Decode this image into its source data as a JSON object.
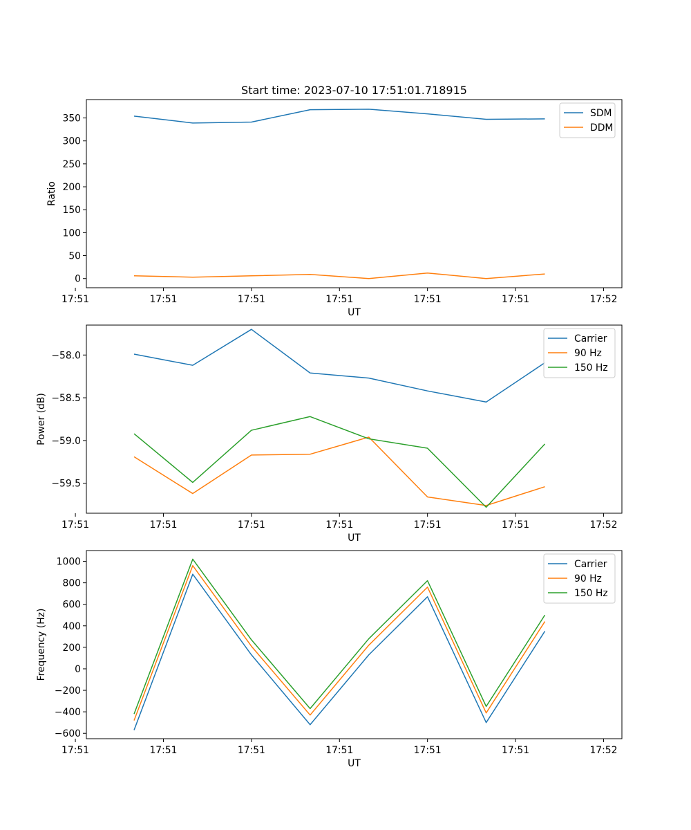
{
  "figure_title": "Start time: 2023-07-10 17:51:01.718915",
  "chart_data": [
    {
      "type": "line",
      "title": "Start time: 2023-07-10 17:51:01.718915",
      "xlabel": "UT",
      "ylabel": "Ratio",
      "x": [
        1,
        2,
        3,
        4,
        5,
        6,
        7,
        8
      ],
      "xlim": [
        0.1875,
        9.3125
      ],
      "xtick_positions": [
        0,
        1.5,
        3,
        4.5,
        6,
        7.5,
        9
      ],
      "xtick_labels": [
        "17:51",
        "17:51",
        "17:51",
        "17:51",
        "17:51",
        "17:51",
        "17:52"
      ],
      "ylim": [
        -20,
        390
      ],
      "yticks": [
        0,
        50,
        100,
        150,
        200,
        250,
        300,
        350
      ],
      "ytick_labels": [
        "0",
        "50",
        "100",
        "150",
        "200",
        "250",
        "300",
        "350"
      ],
      "legend": "top-right",
      "series": [
        {
          "name": "SDM",
          "color": "#1f77b4",
          "values": [
            354,
            339,
            341,
            368,
            369,
            359,
            347,
            348
          ]
        },
        {
          "name": "DDM",
          "color": "#ff7f0e",
          "values": [
            6,
            3,
            6,
            9,
            0,
            12,
            0,
            10
          ]
        }
      ]
    },
    {
      "type": "line",
      "title": "",
      "xlabel": "UT",
      "ylabel": "Power (dB)",
      "x": [
        1,
        2,
        3,
        4,
        5,
        6,
        7,
        8
      ],
      "xlim": [
        0.1875,
        9.3125
      ],
      "xtick_positions": [
        0,
        1.5,
        3,
        4.5,
        6,
        7.5,
        9
      ],
      "xtick_labels": [
        "17:51",
        "17:51",
        "17:51",
        "17:51",
        "17:51",
        "17:51",
        "17:52"
      ],
      "ylim": [
        -59.85,
        -57.65
      ],
      "yticks": [
        -59.5,
        -59.0,
        -58.5,
        -58.0
      ],
      "ytick_labels": [
        "−59.5",
        "−59.0",
        "−58.5",
        "−58.0"
      ],
      "legend": "top-right",
      "series": [
        {
          "name": "Carrier",
          "color": "#1f77b4",
          "values": [
            -57.99,
            -58.12,
            -57.7,
            -58.21,
            -58.27,
            -58.42,
            -58.55,
            -58.09
          ]
        },
        {
          "name": "90 Hz",
          "color": "#ff7f0e",
          "values": [
            -59.19,
            -59.62,
            -59.17,
            -59.16,
            -58.96,
            -59.66,
            -59.76,
            -59.54
          ]
        },
        {
          "name": "150 Hz",
          "color": "#2ca02c",
          "values": [
            -58.92,
            -59.49,
            -58.88,
            -58.72,
            -58.98,
            -59.09,
            -59.78,
            -59.04
          ]
        }
      ]
    },
    {
      "type": "line",
      "title": "",
      "xlabel": "UT",
      "ylabel": "Frequency (Hz)",
      "x": [
        1,
        2,
        3,
        4,
        5,
        6,
        7,
        8
      ],
      "xlim": [
        0.1875,
        9.3125
      ],
      "xtick_positions": [
        0,
        1.5,
        3,
        4.5,
        6,
        7.5,
        9
      ],
      "xtick_labels": [
        "17:51",
        "17:51",
        "17:51",
        "17:51",
        "17:51",
        "17:51",
        "17:52"
      ],
      "ylim": [
        -650,
        1100
      ],
      "yticks": [
        -600,
        -400,
        -200,
        0,
        200,
        400,
        600,
        800,
        1000
      ],
      "ytick_labels": [
        "−600",
        "−400",
        "−200",
        "0",
        "200",
        "400",
        "600",
        "800",
        "1000"
      ],
      "legend": "top-right",
      "series": [
        {
          "name": "Carrier",
          "color": "#1f77b4",
          "values": [
            -570,
            880,
            130,
            -520,
            130,
            670,
            -500,
            350
          ]
        },
        {
          "name": "90 Hz",
          "color": "#ff7f0e",
          "values": [
            -480,
            960,
            210,
            -430,
            220,
            760,
            -410,
            440
          ]
        },
        {
          "name": "150 Hz",
          "color": "#2ca02c",
          "values": [
            -420,
            1020,
            270,
            -370,
            280,
            820,
            -350,
            500
          ]
        }
      ]
    }
  ]
}
